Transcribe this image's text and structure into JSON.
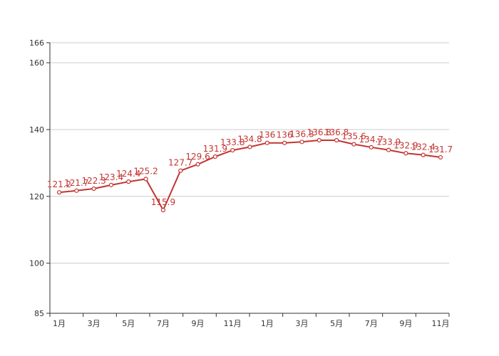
{
  "chart_data": {
    "type": "line",
    "title": "",
    "xlabel": "",
    "ylabel": "",
    "ylim": [
      85,
      166
    ],
    "y_ticks": [
      85,
      100,
      120,
      140,
      160,
      166
    ],
    "x_tick_labels": [
      "1月",
      "3月",
      "5月",
      "7月",
      "9月",
      "11月",
      "1月",
      "3月",
      "5月",
      "7月",
      "9月",
      "11月"
    ],
    "grid": true,
    "legend": "none",
    "colors": {
      "line": "#c23531",
      "label": "#c23531",
      "grid": "#cccccc",
      "axis": "#333333"
    },
    "series": [
      {
        "values": [
          121.2,
          121.7,
          122.3,
          123.4,
          124.4,
          125.2,
          115.9,
          127.7,
          129.6,
          131.9,
          133.8,
          134.8,
          136,
          136,
          136.3,
          136.8,
          136.8,
          135.6,
          134.7,
          133.9,
          132.9,
          132.4,
          131.7
        ]
      }
    ]
  }
}
